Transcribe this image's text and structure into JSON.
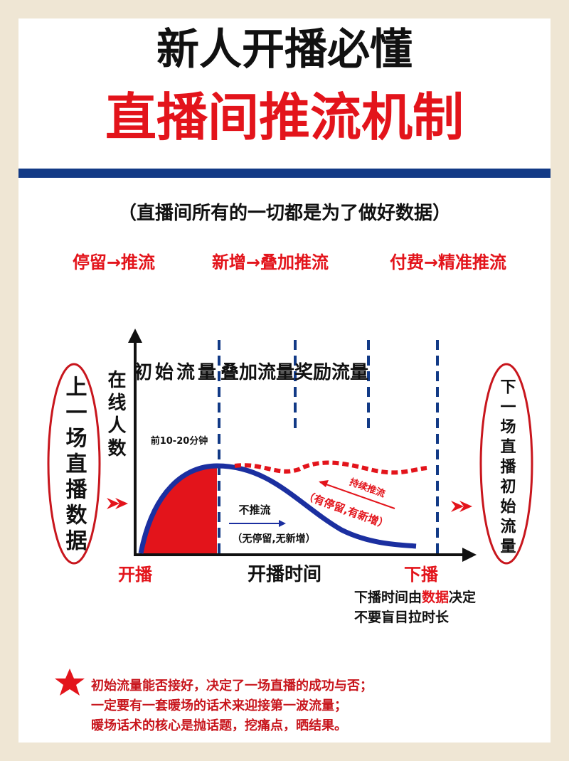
{
  "header": {
    "title": "新人开播必懂",
    "subtitle": "直播间推流机制",
    "note": "（直播间所有的一切都是为了做好数据）"
  },
  "flows": [
    "停留→推流",
    "新增→叠加推流",
    "付费→精准推流"
  ],
  "diagram": {
    "left_box": "上一场直播数据",
    "right_box": "下一场直播初始流量",
    "y_label": "在线人数",
    "phases": [
      "初始流量",
      "叠加流量",
      "奖励流量"
    ],
    "phase_note": "前10-20分钟",
    "push_label": "持续推流",
    "push_note": "（有停留,有新增）",
    "nopush_label": "不推流",
    "nopush_note": "（无停留,无新增）",
    "start": "开播",
    "x_label": "开播时间",
    "end": "下播",
    "end_note": [
      "下播时间由",
      "数据",
      "决定"
    ],
    "end_note2": "不要盲目拉时长"
  },
  "tips": [
    "初始流量能否接好，决定了一场直播的成功与否；",
    "一定要有一套暖场的话术来迎接第一波流量；",
    "暖场话术的核心是抛话题，挖痛点，晒结果。"
  ]
}
